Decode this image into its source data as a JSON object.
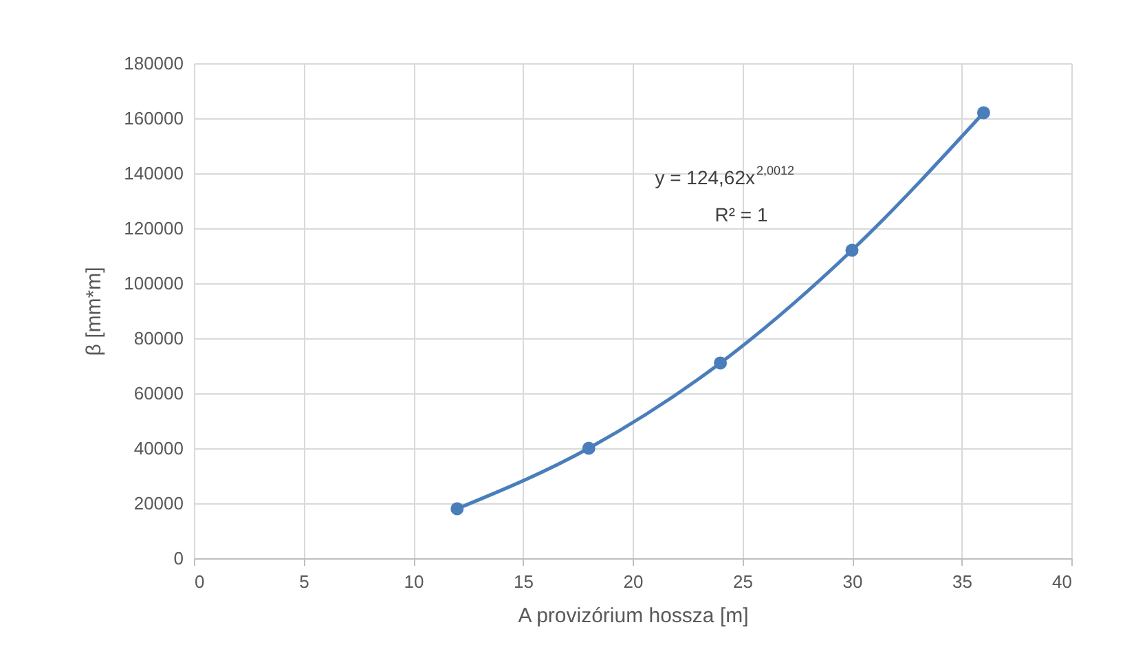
{
  "chart_data": {
    "type": "line",
    "xlabel": "A provizórium hossza [m]",
    "ylabel": "β [mm*m]",
    "x": [
      12,
      18,
      24,
      30,
      36
    ],
    "series": [
      {
        "color": "#4a7ebb",
        "values": [
          18000,
          40000,
          71000,
          112000,
          162000
        ]
      }
    ],
    "xlim": [
      0,
      40
    ],
    "xticks": [
      0,
      5,
      10,
      15,
      20,
      25,
      30,
      35,
      40
    ],
    "ylim": [
      0,
      180000
    ],
    "yticks": [
      0,
      20000,
      40000,
      60000,
      80000,
      100000,
      120000,
      140000,
      160000,
      180000
    ],
    "grid": true,
    "marker": "circle",
    "line_style": "solid",
    "annotations": [
      "y = 124,62x$^{2,0012}$",
      "R² = 1"
    ]
  }
}
